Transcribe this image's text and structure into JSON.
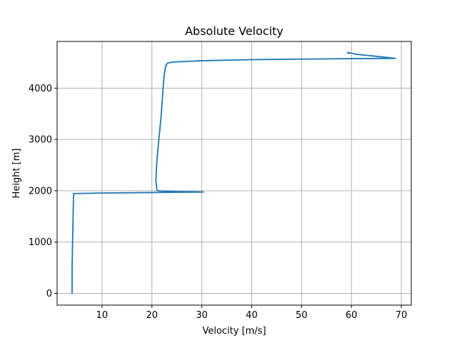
{
  "chart_data": {
    "type": "line",
    "title": "Absolute Velocity",
    "xlabel": "Velocity [m/s]",
    "ylabel": "Height [m]",
    "xlim": [
      1,
      72
    ],
    "ylim": [
      -230,
      4910
    ],
    "xticks": [
      10,
      20,
      30,
      40,
      50,
      60,
      70
    ],
    "yticks": [
      0,
      1000,
      2000,
      3000,
      4000
    ],
    "grid": true,
    "series": [
      {
        "color": "#1f77b4",
        "x": [
          4.0,
          4.0,
          4.1,
          4.3,
          10,
          20,
          30.3,
          25,
          21.5,
          21.0,
          20.8,
          21.0,
          21.4,
          21.8,
          22.1,
          22.4,
          22.7,
          22.9,
          23.2,
          24.5,
          30,
          40,
          50,
          60,
          68.8,
          65,
          61,
          59.8,
          59.3,
          59.2,
          59.6
        ],
        "y": [
          0,
          500,
          1000,
          1945,
          1955,
          1965,
          1975,
          1985,
          1995,
          2005,
          2200,
          2600,
          3000,
          3400,
          3800,
          4200,
          4400,
          4460,
          4490,
          4510,
          4535,
          4555,
          4565,
          4575,
          4580,
          4620,
          4660,
          4685,
          4695,
          4690,
          4680
        ]
      }
    ]
  }
}
